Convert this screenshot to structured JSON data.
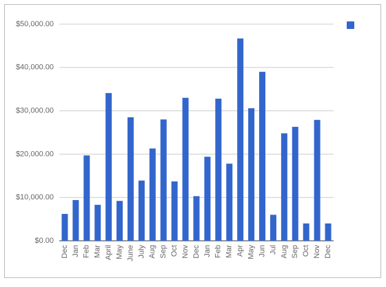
{
  "chart_data": {
    "type": "bar",
    "categories": [
      "Dec",
      "Jan",
      "Feb",
      "Mar",
      "April",
      "May",
      "June",
      "July",
      "Aug",
      "Sep",
      "Oct",
      "Nov",
      "Dec",
      "Jan",
      "Feb",
      "Mar",
      "Apr",
      "May",
      "Jun",
      "Jul",
      "Aug",
      "Sep",
      "Oct",
      "Nov",
      "Dec"
    ],
    "values": [
      6200,
      9400,
      19700,
      8300,
      34100,
      9200,
      28500,
      13900,
      21300,
      28000,
      13700,
      33000,
      10300,
      19400,
      32800,
      17800,
      46700,
      30600,
      39000,
      6000,
      24800,
      26300,
      4000,
      27900,
      4000
    ],
    "color": "#3366cc",
    "ylim": [
      0,
      50000
    ],
    "yticks": [
      {
        "value": 0,
        "label": "$0.00"
      },
      {
        "value": 10000,
        "label": "$10,000.00"
      },
      {
        "value": 20000,
        "label": "$20,000.00"
      },
      {
        "value": 30000,
        "label": "$30,000.00"
      },
      {
        "value": 40000,
        "label": "$40,000.00"
      },
      {
        "value": 50000,
        "label": "$50,000.00"
      }
    ],
    "grid": true,
    "legend": "top-right"
  }
}
